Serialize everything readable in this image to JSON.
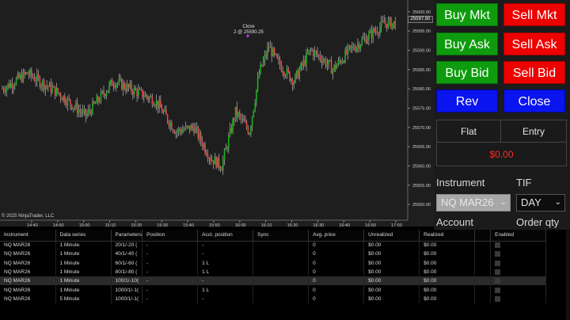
{
  "chart": {
    "copyright": "© 2025 NinjaTrader, LLC",
    "close_annotation_title": "Close",
    "close_annotation_value": "2 @ 25590.25",
    "last_price_tag": "25597.50",
    "price_ticks": [
      "25600.00",
      "25595.00",
      "25590.00",
      "25585.00",
      "25580.00",
      "25575.00",
      "25570.00",
      "25565.00",
      "25560.00",
      "25555.00",
      "25550.00"
    ],
    "time_ticks": [
      "14:40",
      "14:50",
      "15:00",
      "15:10",
      "15:20",
      "15:30",
      "15:40",
      "15:50",
      "16:00",
      "16:10",
      "16:20",
      "16:30",
      "16:40",
      "16:50",
      "17:00"
    ],
    "up_color": "#1fae1f",
    "down_color": "#e2484f"
  },
  "order_panel": {
    "buy_mkt": "Buy Mkt",
    "sell_mkt": "Sell Mkt",
    "buy_ask": "Buy Ask",
    "sell_ask": "Sell Ask",
    "buy_bid": "Buy Bid",
    "sell_bid": "Sell Bid",
    "rev": "Rev",
    "close": "Close",
    "position": "Flat",
    "entry": "Entry",
    "pnl": "$0.00",
    "instrument_label": "Instrument",
    "tif_label": "TIF",
    "instrument_value": "NQ MAR26",
    "tif_value": "DAY",
    "account_label": "Account",
    "order_qty_label": "Order qty"
  },
  "grid": {
    "columns": [
      "Instrument",
      "Data series",
      "Parameters",
      "Position",
      "Acct. position",
      "Sync",
      "Avg. price",
      "Unrealized",
      "Realized",
      "",
      "Enabled"
    ],
    "rows": [
      [
        "NQ MAR26",
        "1 Minute",
        "20/1/-20 (",
        "-",
        "-",
        "",
        "0",
        "$0.00",
        "$0.00",
        "",
        ""
      ],
      [
        "NQ MAR26",
        "1 Minute",
        "40/1/-40 (",
        "-",
        "-",
        "",
        "0",
        "$0.00",
        "$0.00",
        "",
        ""
      ],
      [
        "NQ MAR26",
        "1 Minute",
        "60/1/-60 (",
        "-",
        "1 L",
        "",
        "0",
        "$0.00",
        "$0.00",
        "",
        ""
      ],
      [
        "NQ MAR26",
        "1 Minute",
        "80/1/-80 (",
        "-",
        "1 L",
        "",
        "0",
        "$0.00",
        "$0.00",
        "",
        ""
      ],
      [
        "NQ MAR26",
        "1 Minute",
        "100/1/-10(",
        "-",
        "-",
        "",
        "0",
        "$0.00",
        "$0.00",
        "",
        ""
      ],
      [
        "NQ MAR26",
        "1 Minute",
        "1000/1/-1(",
        "-",
        "1 L",
        "",
        "0",
        "$0.00",
        "$0.00",
        "",
        ""
      ],
      [
        "NQ MAR26",
        "5 Minute",
        "1000/1/-1(",
        "-",
        "-",
        "",
        "0",
        "$0.00",
        "$0.00",
        "",
        ""
      ]
    ],
    "selected_row": 4
  }
}
